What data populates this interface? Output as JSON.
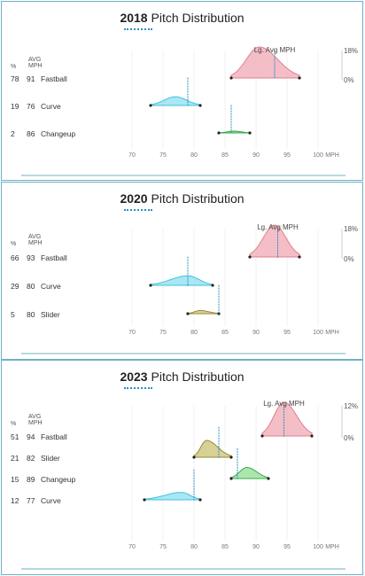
{
  "chart_data": [
    {
      "type": "density",
      "year": "2018",
      "title_suffix": "Pitch Distribution",
      "col_pct": "%",
      "col_avg": [
        "AVG",
        "MPH"
      ],
      "legend_label": "Lg. Avg MPH",
      "scale_top": "18%",
      "scale_bottom": "0%",
      "x_unit": "MPH",
      "x_ticks": [
        70,
        75,
        80,
        85,
        90,
        95,
        100
      ],
      "xlim": [
        65,
        103
      ],
      "pitches": [
        {
          "pct": "78",
          "avg": "91",
          "name": "Fastball",
          "color": "#e07f8f",
          "fill": "#f2b3bd",
          "min": 86,
          "max": 97,
          "mode": 90.5,
          "peak": 1.0,
          "lg_avg": 93
        },
        {
          "pct": "19",
          "avg": "76",
          "name": "Curve",
          "color": "#3fc2df",
          "fill": "#9be3f2",
          "min": 73,
          "max": 81,
          "mode": 77,
          "peak": 0.28,
          "lg_avg": 79
        },
        {
          "pct": "2",
          "avg": "86",
          "name": "Changeup",
          "color": "#3aa84a",
          "fill": "#7ed07f",
          "min": 84,
          "max": 89,
          "mode": 86.5,
          "peak": 0.03,
          "lg_avg": 86
        }
      ]
    },
    {
      "type": "density",
      "year": "2020",
      "title_suffix": "Pitch Distribution",
      "col_pct": "%",
      "col_avg": [
        "AVG",
        "MPH"
      ],
      "legend_label": "Lg. Avg MPH",
      "scale_top": "18%",
      "scale_bottom": "0%",
      "x_unit": "MPH",
      "x_ticks": [
        70,
        75,
        80,
        85,
        90,
        95,
        100
      ],
      "xlim": [
        65,
        103
      ],
      "pitches": [
        {
          "pct": "66",
          "avg": "93",
          "name": "Fastball",
          "color": "#e07f8f",
          "fill": "#f2b3bd",
          "min": 89,
          "max": 97,
          "mode": 93,
          "peak": 1.0,
          "lg_avg": 93.5
        },
        {
          "pct": "29",
          "avg": "80",
          "name": "Curve",
          "color": "#3fc2df",
          "fill": "#9be3f2",
          "min": 73,
          "max": 83,
          "mode": 79,
          "peak": 0.3,
          "lg_avg": 79
        },
        {
          "pct": "5",
          "avg": "80",
          "name": "Slider",
          "color": "#9a8b30",
          "fill": "#d0c885",
          "min": 79,
          "max": 84,
          "mode": 81,
          "peak": 0.1,
          "lg_avg": 84
        }
      ]
    },
    {
      "type": "density",
      "year": "2023",
      "title_suffix": "Pitch Distribution",
      "col_pct": "%",
      "col_avg": [
        "AVG",
        "MPH"
      ],
      "legend_label": "Lg. Avg MPH",
      "scale_top": "12%",
      "scale_bottom": "0%",
      "x_unit": "MPH",
      "x_ticks": [
        70,
        75,
        80,
        85,
        90,
        95,
        100
      ],
      "xlim": [
        65,
        103
      ],
      "pitches": [
        {
          "pct": "51",
          "avg": "94",
          "name": "Fastball",
          "color": "#e07f8f",
          "fill": "#f2b3bd",
          "min": 91,
          "max": 99,
          "mode": 94.5,
          "peak": 1.0,
          "lg_avg": 94.5
        },
        {
          "pct": "21",
          "avg": "82",
          "name": "Slider",
          "color": "#9a8b30",
          "fill": "#d0c885",
          "min": 80,
          "max": 86,
          "mode": 82,
          "peak": 0.5,
          "lg_avg": 84
        },
        {
          "pct": "15",
          "avg": "89",
          "name": "Changeup",
          "color": "#3aa84a",
          "fill": "#9fe0a0",
          "min": 86,
          "max": 92,
          "mode": 88.5,
          "peak": 0.33,
          "lg_avg": 87
        },
        {
          "pct": "12",
          "avg": "77",
          "name": "Curve",
          "color": "#3fc2df",
          "fill": "#9be3f2",
          "min": 72,
          "max": 81,
          "mode": 78,
          "peak": 0.22,
          "lg_avg": 80
        }
      ]
    }
  ]
}
